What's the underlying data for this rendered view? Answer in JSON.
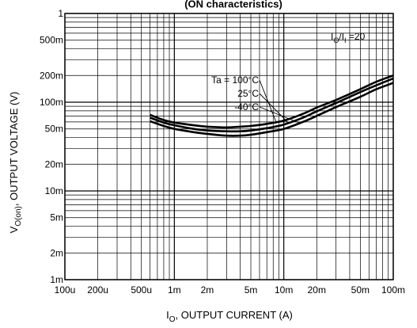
{
  "chart_data": {
    "type": "line",
    "title": "(ON characteristics)",
    "xlabel": "I",
    "xlabel_sub": "O",
    "xlabel_rest": ", OUTPUT CURRENT (A)",
    "ylabel": "V",
    "ylabel_sub": "O(on)",
    "ylabel_rest": ", OUTPUT VOLTAGE (V)",
    "x_scale": "log",
    "y_scale": "log",
    "xlim": [
      0.0001,
      0.1
    ],
    "ylim": [
      0.001,
      1
    ],
    "grid": true,
    "x_ticks": [
      {
        "value": 0.0001,
        "label": "100u"
      },
      {
        "value": 0.0002,
        "label": "200u"
      },
      {
        "value": 0.0005,
        "label": "500u"
      },
      {
        "value": 0.001,
        "label": "1m"
      },
      {
        "value": 0.002,
        "label": "2m"
      },
      {
        "value": 0.005,
        "label": "5m"
      },
      {
        "value": 0.01,
        "label": "10m"
      },
      {
        "value": 0.02,
        "label": "20m"
      },
      {
        "value": 0.05,
        "label": "50m"
      },
      {
        "value": 0.1,
        "label": "100m"
      }
    ],
    "y_ticks": [
      {
        "value": 1,
        "label": "1"
      },
      {
        "value": 0.5,
        "label": "500m"
      },
      {
        "value": 0.2,
        "label": "200m"
      },
      {
        "value": 0.1,
        "label": "100m"
      },
      {
        "value": 0.05,
        "label": "50m"
      },
      {
        "value": 0.02,
        "label": "20m"
      },
      {
        "value": 0.01,
        "label": "10m"
      },
      {
        "value": 0.005,
        "label": "5m"
      },
      {
        "value": 0.002,
        "label": "2m"
      },
      {
        "value": 0.001,
        "label": "1m"
      }
    ],
    "condition": {
      "text_main": "I",
      "sub1": "O",
      "mid": "/I",
      "sub2": "I",
      "rest": " =20"
    },
    "series": [
      {
        "name": "Ta = 100°C",
        "x": [
          0.0006,
          0.0008,
          0.001,
          0.0015,
          0.002,
          0.003,
          0.004,
          0.005,
          0.007,
          0.01,
          0.015,
          0.02,
          0.03,
          0.05,
          0.07,
          0.1
        ],
        "y": [
          0.072,
          0.063,
          0.059,
          0.055,
          0.053,
          0.052,
          0.053,
          0.054,
          0.057,
          0.062,
          0.074,
          0.087,
          0.106,
          0.14,
          0.17,
          0.2
        ]
      },
      {
        "name": "25°C",
        "x": [
          0.0006,
          0.0008,
          0.001,
          0.0015,
          0.002,
          0.003,
          0.004,
          0.005,
          0.007,
          0.01,
          0.015,
          0.02,
          0.03,
          0.05,
          0.07,
          0.1
        ],
        "y": [
          0.067,
          0.059,
          0.055,
          0.05,
          0.048,
          0.047,
          0.047,
          0.048,
          0.051,
          0.056,
          0.067,
          0.079,
          0.098,
          0.13,
          0.155,
          0.185
        ]
      },
      {
        "name": "-40°C",
        "x": [
          0.0006,
          0.0008,
          0.001,
          0.0015,
          0.002,
          0.003,
          0.004,
          0.005,
          0.007,
          0.01,
          0.015,
          0.02,
          0.03,
          0.05,
          0.07,
          0.1
        ],
        "y": [
          0.061,
          0.054,
          0.05,
          0.046,
          0.044,
          0.042,
          0.042,
          0.043,
          0.046,
          0.05,
          0.06,
          0.07,
          0.088,
          0.115,
          0.14,
          0.165
        ]
      }
    ],
    "series_label_prefix": "Ta = "
  }
}
